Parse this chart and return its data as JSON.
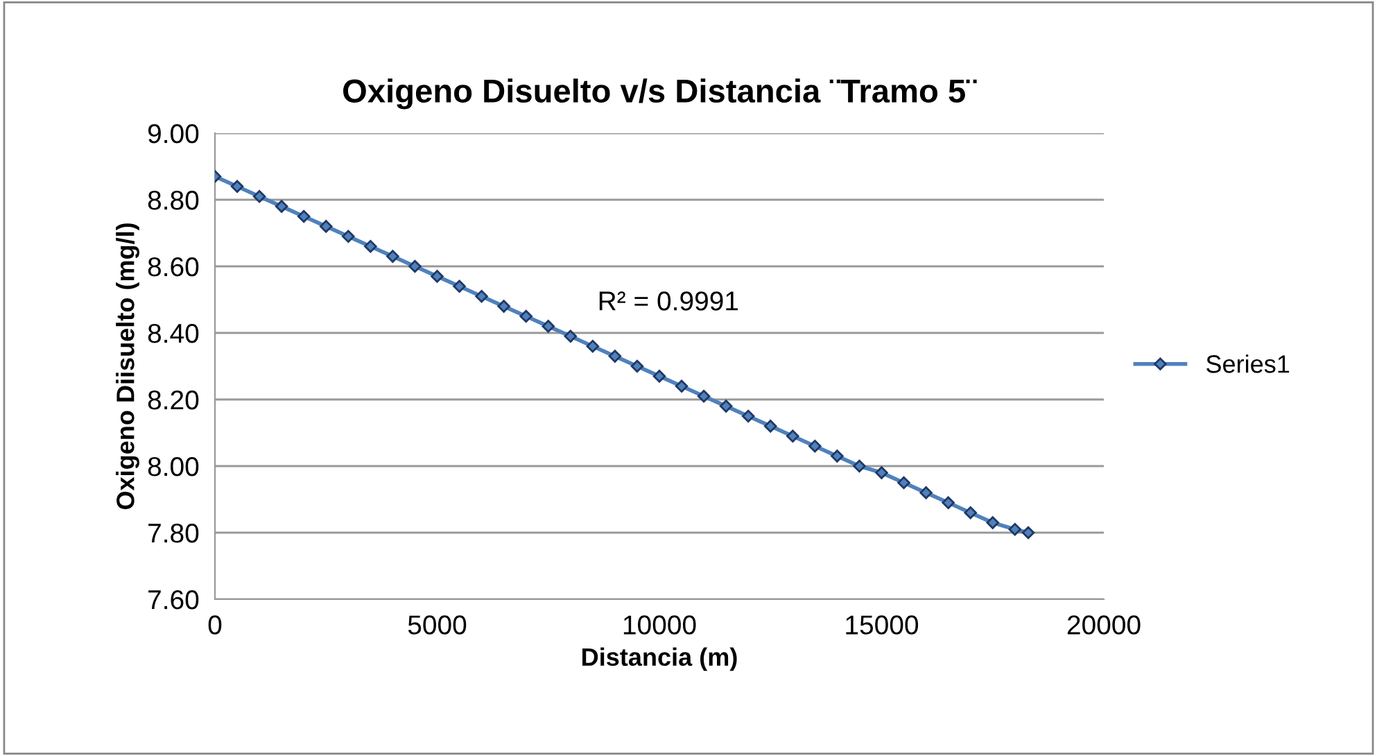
{
  "chart_data": {
    "type": "line",
    "title": "Oxigeno Disuelto v/s Distancia ¨Tramo 5¨",
    "xlabel": "Distancia (m)",
    "ylabel": "Oxigeno Diisuelto (mg/l)",
    "x": [
      0,
      500,
      1000,
      1500,
      2000,
      2500,
      3000,
      3500,
      4000,
      4500,
      5000,
      5500,
      6000,
      6500,
      7000,
      7500,
      8000,
      8500,
      9000,
      9500,
      10000,
      10500,
      11000,
      11500,
      12000,
      12500,
      13000,
      13500,
      14000,
      14500,
      15000,
      15500,
      16000,
      16500,
      17000,
      17500,
      18000,
      18300
    ],
    "series": [
      {
        "name": "Series1",
        "color": "#4f81bd",
        "values": [
          8.87,
          8.84,
          8.81,
          8.78,
          8.75,
          8.72,
          8.69,
          8.66,
          8.63,
          8.6,
          8.57,
          8.54,
          8.51,
          8.48,
          8.45,
          8.42,
          8.39,
          8.36,
          8.33,
          8.3,
          8.27,
          8.24,
          8.21,
          8.18,
          8.15,
          8.12,
          8.09,
          8.06,
          8.03,
          8.0,
          7.98,
          7.95,
          7.92,
          7.89,
          7.86,
          7.83,
          7.81,
          7.8
        ]
      }
    ],
    "xlim": [
      0,
      20000
    ],
    "xticks": [
      0,
      5000,
      10000,
      15000,
      20000
    ],
    "ylim": [
      7.6,
      9.0
    ],
    "yticks": [
      {
        "value": 7.6,
        "label": "7.60"
      },
      {
        "value": 7.8,
        "label": "7.80"
      },
      {
        "value": 8.0,
        "label": "8.00"
      },
      {
        "value": 8.2,
        "label": "8.20"
      },
      {
        "value": 8.4,
        "label": "8.40"
      },
      {
        "value": 8.6,
        "label": "8.60"
      },
      {
        "value": 8.8,
        "label": "8.80"
      },
      {
        "value": 9.0,
        "label": "9.00"
      }
    ],
    "grid": "y",
    "legend": "right",
    "marker": "diamond",
    "line_style": "solid",
    "annotations": [
      "R² = 0.9991"
    ]
  }
}
